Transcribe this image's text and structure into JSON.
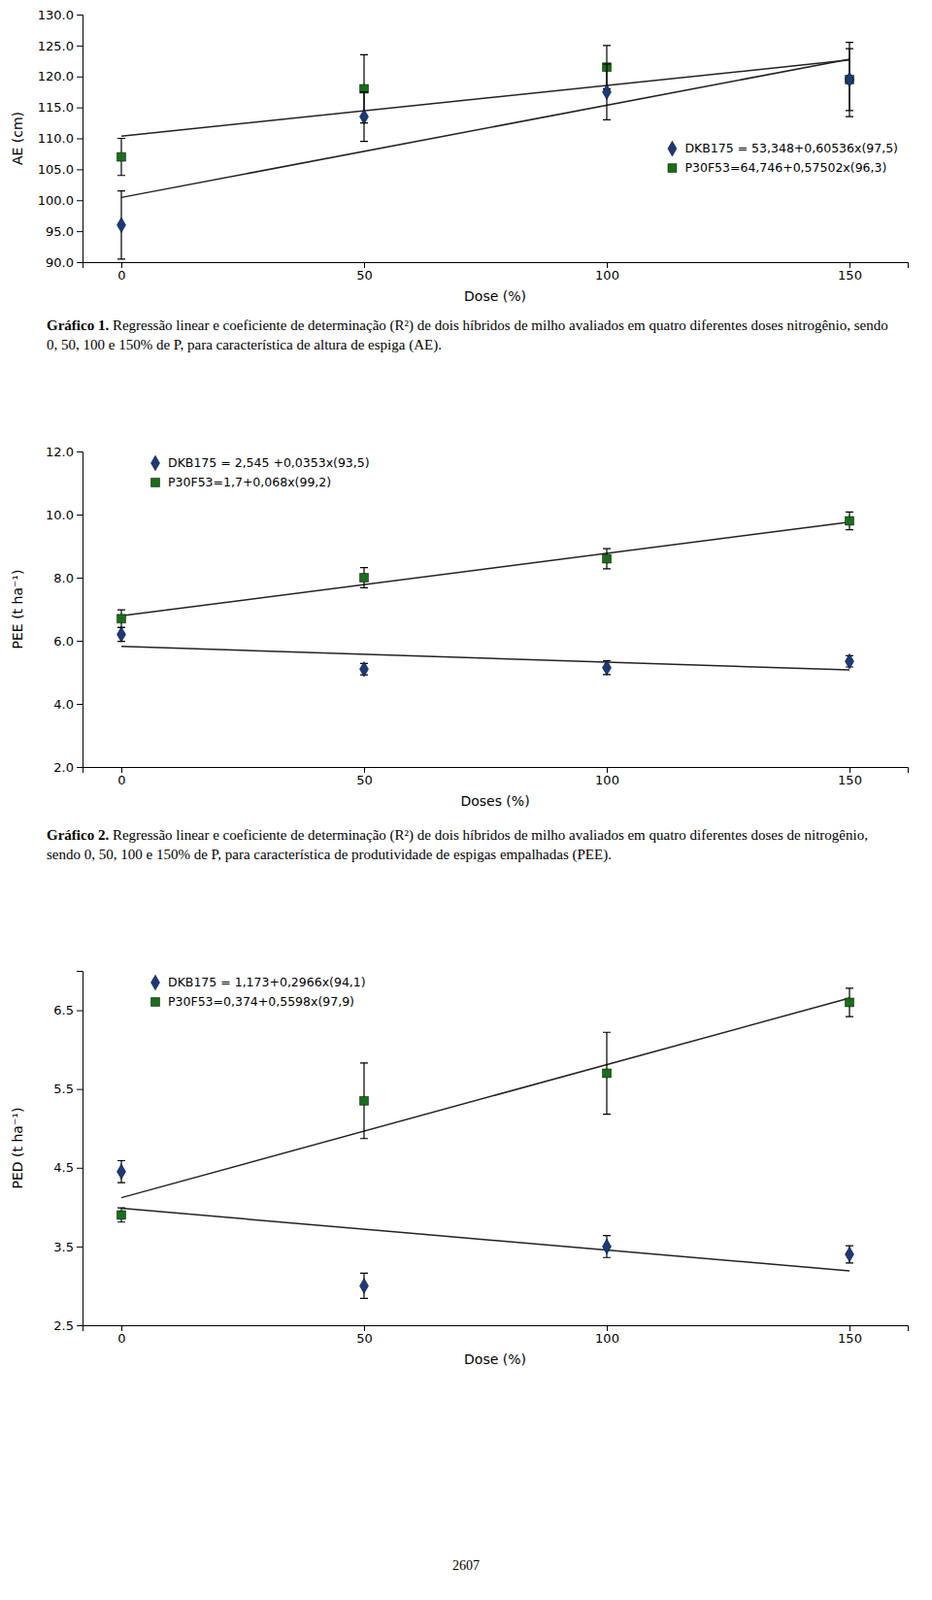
{
  "chart_data": [
    {
      "type": "scatter",
      "xlabel": "Dose (%)",
      "ylabel": "AE (cm)",
      "x": [
        0,
        50,
        100,
        150
      ],
      "xlim": [
        -8,
        162
      ],
      "xticks": [
        0,
        50,
        100,
        150
      ],
      "ylim": [
        90,
        130
      ],
      "yticks": [
        {
          "value": 90,
          "label": "90.0"
        },
        {
          "value": 95,
          "label": "95.0"
        },
        {
          "value": 100,
          "label": "100.0"
        },
        {
          "value": 105,
          "label": "105.0"
        },
        {
          "value": 110,
          "label": "110.0"
        },
        {
          "value": 115,
          "label": "115.0"
        },
        {
          "value": 120,
          "label": "120.0"
        },
        {
          "value": 125,
          "label": "125.0"
        },
        {
          "value": 130,
          "label": "130.0"
        }
      ],
      "grid": false,
      "legend": "center right",
      "series": [
        {
          "name": "DKB175 = 53,348+0,60536x(97,5)",
          "type": "scatter",
          "marker": "diamond",
          "color": "#1a3a7c",
          "values": [
            96.0,
            113.5,
            117.5,
            119.5
          ],
          "errors": [
            5.5,
            4.0,
            4.5,
            5.0
          ]
        },
        {
          "name": "P30F53=64,746+0,57502x(96,3)",
          "type": "scatter",
          "marker": "square",
          "color": "#1a6e1a",
          "values": [
            107.0,
            118.0,
            121.5,
            119.5
          ],
          "errors": [
            3.0,
            5.5,
            3.5,
            6.0
          ]
        },
        {
          "type": "line",
          "line_style": "solid",
          "color": "#222222",
          "x": [
            0,
            150
          ],
          "values": [
            100.45,
            122.8
          ]
        },
        {
          "type": "line",
          "line_style": "solid",
          "color": "#222222",
          "x": [
            0,
            150
          ],
          "values": [
            110.35,
            122.65
          ]
        }
      ]
    },
    {
      "type": "scatter",
      "xlabel": "Doses (%)",
      "ylabel": "PEE (t ha⁻¹)",
      "x": [
        0,
        50,
        100,
        150
      ],
      "xlim": [
        -8,
        162
      ],
      "xticks": [
        0,
        50,
        100,
        150
      ],
      "ylim": [
        2.0,
        12.0
      ],
      "yticks": [
        {
          "value": 2.0,
          "label": "2.0"
        },
        {
          "value": 4.0,
          "label": "4.0"
        },
        {
          "value": 6.0,
          "label": "6.0"
        },
        {
          "value": 8.0,
          "label": "8.0"
        },
        {
          "value": 10.0,
          "label": "10.0"
        },
        {
          "value": 12.0,
          "label": "12.0"
        }
      ],
      "grid": false,
      "legend": "upper left",
      "series": [
        {
          "name": "DKB175 = 2,545 +0,0353x(93,5)",
          "type": "scatter",
          "marker": "diamond",
          "color": "#1a3a7c",
          "values": [
            6.2,
            5.1,
            5.15,
            5.35
          ],
          "errors": [
            0.22,
            0.18,
            0.22,
            0.18
          ]
        },
        {
          "name": "P30F53=1,7+0,068x(99,2)",
          "type": "scatter",
          "marker": "square",
          "color": "#1a6e1a",
          "values": [
            6.7,
            8.0,
            8.6,
            9.8
          ],
          "errors": [
            0.28,
            0.32,
            0.32,
            0.28
          ]
        },
        {
          "type": "line",
          "line_style": "solid",
          "color": "#222222",
          "x": [
            0,
            150
          ],
          "values": [
            5.825,
            5.075
          ]
        },
        {
          "type": "line",
          "line_style": "solid",
          "color": "#222222",
          "x": [
            0,
            150
          ],
          "values": [
            6.79,
            9.76
          ]
        }
      ]
    },
    {
      "type": "scatter",
      "xlabel": "Dose (%)",
      "ylabel": "PED (t ha⁻¹)",
      "x": [
        0,
        50,
        100,
        150
      ],
      "xlim": [
        -8,
        162
      ],
      "xticks": [
        0,
        50,
        100,
        150
      ],
      "ylim": [
        2.5,
        7.0
      ],
      "yticks": [
        2.5,
        3.5,
        4.5,
        5.5,
        6.5
      ],
      "grid": false,
      "legend": "upper left",
      "series": [
        {
          "name": "DKB175 = 1,173+0,2966x(94,1)",
          "type": "scatter",
          "marker": "diamond",
          "color": "#1a3a7c",
          "values": [
            4.45,
            3.0,
            3.5,
            3.4
          ],
          "errors": [
            0.14,
            0.16,
            0.14,
            0.11
          ]
        },
        {
          "name": "P30F53=0,374+0,5598x(97,9)",
          "type": "scatter",
          "marker": "square",
          "color": "#1a6e1a",
          "values": [
            3.9,
            5.35,
            5.7,
            6.6
          ],
          "errors": [
            0.09,
            0.48,
            0.52,
            0.18
          ]
        },
        {
          "type": "line",
          "line_style": "solid",
          "color": "#222222",
          "x": [
            0,
            150
          ],
          "values": [
            3.985,
            3.19
          ]
        },
        {
          "type": "line",
          "line_style": "solid",
          "color": "#222222",
          "x": [
            0,
            150
          ],
          "values": [
            4.12,
            6.655
          ]
        }
      ]
    }
  ],
  "captions": [
    {
      "label": "Gráfico 1.",
      "text": " Regressão linear e coeficiente de determinação (R²) de dois híbridos de milho avaliados em quatro diferentes doses nitrogênio, sendo 0, 50, 100 e 150% de P, para característica de altura de espiga (AE)."
    },
    {
      "label": "Gráfico 2.",
      "text": " Regressão linear e coeficiente de determinação (R²) de dois híbridos de milho avaliados em quatro diferentes doses de nitrogênio, sendo 0, 50, 100 e 150% de P, para característica de produtividade de espigas empalhadas (PEE)."
    }
  ],
  "page_number": "2607"
}
